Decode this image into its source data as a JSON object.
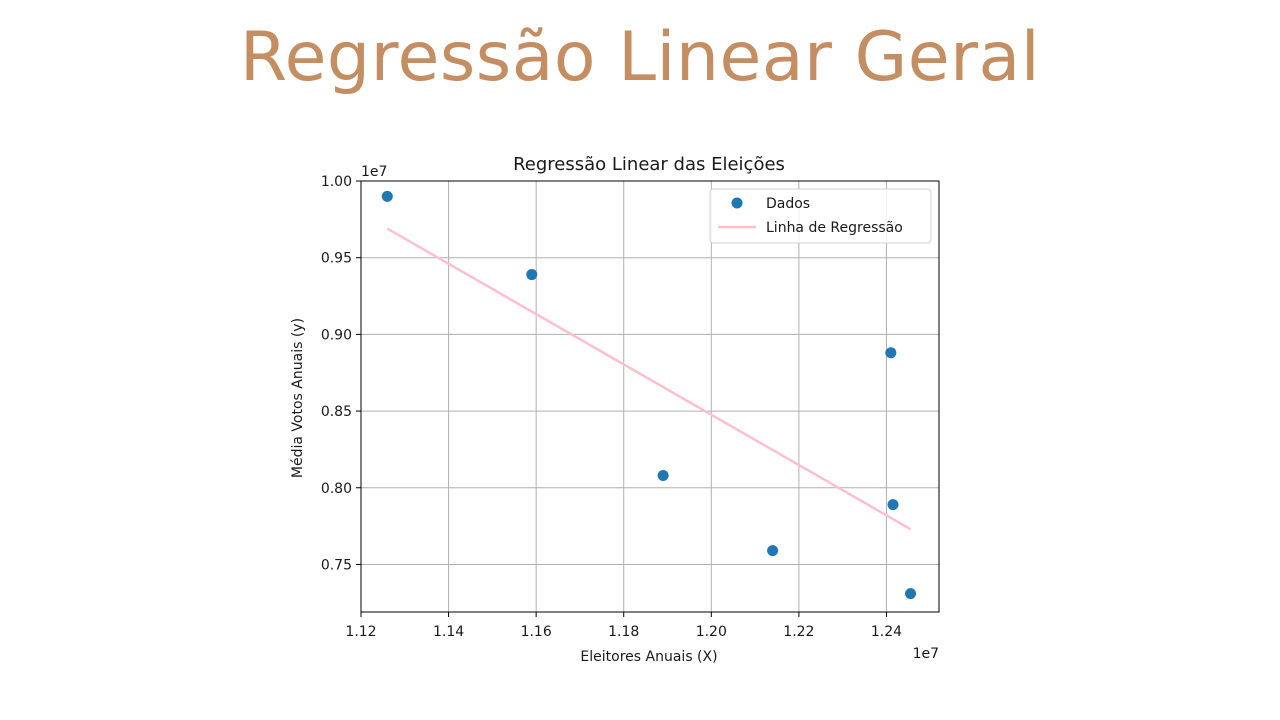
{
  "slide": {
    "title": "Regressão Linear Geral",
    "title_color": "#c48d62"
  },
  "chart_data": {
    "type": "scatter",
    "title": "Regressão Linear das Eleições",
    "xlabel": "Eleitores Anuais (X)",
    "ylabel": "Média Votos Anuais (y)",
    "x_offset_label": "1e7",
    "y_offset_label": "1e7",
    "xlim": [
      1.12,
      1.252
    ],
    "ylim": [
      0.719,
      1.0
    ],
    "x_ticks": [
      1.12,
      1.14,
      1.16,
      1.18,
      1.2,
      1.22,
      1.24
    ],
    "x_tick_labels": [
      "1.12",
      "1.14",
      "1.16",
      "1.18",
      "1.20",
      "1.22",
      "1.24"
    ],
    "y_ticks": [
      0.75,
      0.8,
      0.85,
      0.9,
      0.95,
      1.0
    ],
    "y_tick_labels": [
      "0.75",
      "0.80",
      "0.85",
      "0.90",
      "0.95",
      "1.00"
    ],
    "grid": true,
    "legend_position": "top-right",
    "series": [
      {
        "name": "Dados",
        "kind": "scatter",
        "color": "#1f77b4",
        "points": [
          {
            "x": 1.126,
            "y": 0.99
          },
          {
            "x": 1.159,
            "y": 0.939
          },
          {
            "x": 1.189,
            "y": 0.808
          },
          {
            "x": 1.214,
            "y": 0.759
          },
          {
            "x": 1.241,
            "y": 0.888
          },
          {
            "x": 1.2415,
            "y": 0.789
          },
          {
            "x": 1.2455,
            "y": 0.731
          }
        ]
      },
      {
        "name": "Linha de Regressão",
        "kind": "line",
        "color": "#ffc0cb",
        "points": [
          {
            "x": 1.126,
            "y": 0.969
          },
          {
            "x": 1.2455,
            "y": 0.773
          }
        ]
      }
    ]
  }
}
